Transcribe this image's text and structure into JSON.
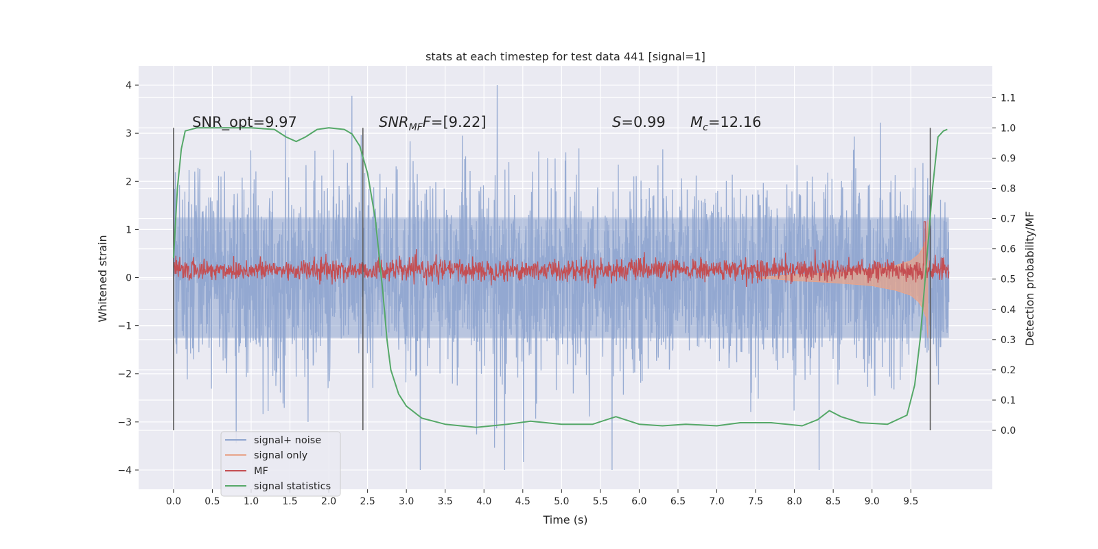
{
  "chart_data": {
    "type": "line",
    "title": "stats at each timestep for test data 441 [signal=1]",
    "xlabel": "Time (s)",
    "ylabel": "Whitened strain",
    "y2label": "Detection probability/MF",
    "xlim": [
      -0.45,
      10.55
    ],
    "ylim": [
      -4.4,
      4.4
    ],
    "y2lim": [
      -0.195,
      1.205
    ],
    "x_ticks": [
      "0.0",
      "0.5",
      "1.0",
      "1.5",
      "2.0",
      "2.5",
      "3.0",
      "3.5",
      "4.0",
      "4.5",
      "5.0",
      "5.5",
      "6.0",
      "6.5",
      "7.0",
      "7.5",
      "8.0",
      "8.5",
      "9.0",
      "9.5"
    ],
    "y_ticks": [
      "4",
      "3",
      "2",
      "1",
      "0",
      "−1",
      "−2",
      "−3",
      "−4"
    ],
    "y2_ticks": [
      "1.1",
      "1.0",
      "0.9",
      "0.8",
      "0.7",
      "0.6",
      "0.5",
      "0.4",
      "0.3",
      "0.2",
      "0.1",
      "0.0"
    ],
    "grid": true,
    "legend_position": "lower-left",
    "annotations": {
      "snr_opt": "SNR_opt=9.97",
      "snr_mf_base": "SNR",
      "snr_mf_sub": "MF",
      "snr_mf_rest": "=[9.22]",
      "s_sym": "S",
      "s_val": "=0.99",
      "mc_sym": "M",
      "mc_sub": "c",
      "mc_val": "=12.16"
    },
    "vertical_markers": [
      0.0,
      2.44,
      9.75
    ],
    "series": [
      {
        "name": "signal+ noise",
        "color": "#8fa5cf",
        "description_values": {
          "x_range": [
            0.0,
            9.99
          ],
          "typical_range": [
            -2.0,
            2.5
          ],
          "max": 4.0,
          "min": -4.0
        }
      },
      {
        "name": "signal only",
        "color": "#e8a48a",
        "points": [
          [
            7.5,
            0.0
          ],
          [
            8.0,
            0.06
          ],
          [
            8.5,
            0.1
          ],
          [
            9.0,
            0.16
          ],
          [
            9.3,
            0.25
          ],
          [
            9.5,
            0.35
          ],
          [
            9.6,
            0.48
          ],
          [
            9.65,
            0.6
          ],
          [
            9.7,
            0.8
          ],
          [
            9.72,
            1.2
          ]
        ]
      },
      {
        "name": "MF",
        "color": "#c44e52",
        "description_values": {
          "axis": "y2",
          "typical_range": [
            0.5,
            0.56
          ],
          "peak": {
            "x": 9.68,
            "y": 0.69
          }
        }
      },
      {
        "name": "signal statistics",
        "color": "#55a868",
        "axis": "y2",
        "points": [
          [
            0.0,
            0.57
          ],
          [
            0.05,
            0.8
          ],
          [
            0.1,
            0.93
          ],
          [
            0.15,
            0.99
          ],
          [
            0.3,
            1.0
          ],
          [
            1.0,
            1.0
          ],
          [
            1.3,
            0.995
          ],
          [
            1.45,
            0.97
          ],
          [
            1.58,
            0.955
          ],
          [
            1.7,
            0.97
          ],
          [
            1.85,
            0.995
          ],
          [
            2.0,
            1.0
          ],
          [
            2.2,
            0.995
          ],
          [
            2.3,
            0.98
          ],
          [
            2.4,
            0.94
          ],
          [
            2.5,
            0.85
          ],
          [
            2.6,
            0.7
          ],
          [
            2.7,
            0.45
          ],
          [
            2.75,
            0.3
          ],
          [
            2.8,
            0.2
          ],
          [
            2.9,
            0.12
          ],
          [
            3.0,
            0.08
          ],
          [
            3.2,
            0.04
          ],
          [
            3.5,
            0.02
          ],
          [
            3.9,
            0.01
          ],
          [
            4.3,
            0.02
          ],
          [
            4.6,
            0.03
          ],
          [
            5.0,
            0.02
          ],
          [
            5.4,
            0.02
          ],
          [
            5.7,
            0.045
          ],
          [
            6.0,
            0.02
          ],
          [
            6.3,
            0.015
          ],
          [
            6.6,
            0.02
          ],
          [
            7.0,
            0.015
          ],
          [
            7.3,
            0.025
          ],
          [
            7.7,
            0.025
          ],
          [
            8.1,
            0.015
          ],
          [
            8.3,
            0.035
          ],
          [
            8.45,
            0.065
          ],
          [
            8.6,
            0.045
          ],
          [
            8.85,
            0.025
          ],
          [
            9.2,
            0.02
          ],
          [
            9.45,
            0.05
          ],
          [
            9.55,
            0.15
          ],
          [
            9.62,
            0.3
          ],
          [
            9.7,
            0.55
          ],
          [
            9.78,
            0.8
          ],
          [
            9.85,
            0.97
          ],
          [
            9.92,
            0.99
          ],
          [
            9.97,
            0.995
          ]
        ]
      }
    ]
  }
}
